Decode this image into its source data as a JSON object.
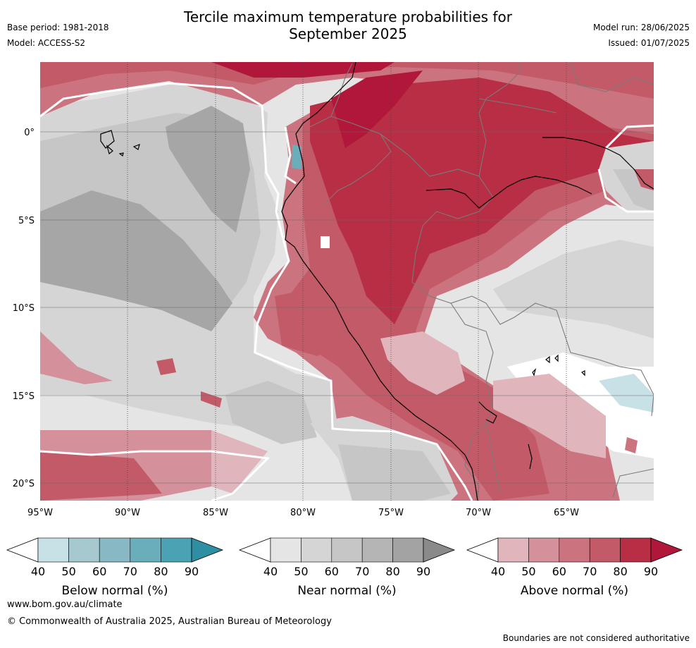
{
  "title_line1": "Tercile maximum temperature probabilities for",
  "title_line2": "September 2025",
  "meta_left": [
    "Base period: 1981-2018",
    "Model: ACCESS-S2"
  ],
  "meta_right": [
    "Model run: 28/06/2025",
    "Issued: 01/07/2025"
  ],
  "map": {
    "lat_labels": [
      "0°",
      "5°S",
      "10°S",
      "15°S",
      "20°S"
    ],
    "lon_labels": [
      "95°W",
      "90°W",
      "85°W",
      "80°W",
      "75°W",
      "70°W",
      "65°W"
    ]
  },
  "colorbars": [
    {
      "label": "Below normal (%)",
      "ticks": [
        "40",
        "50",
        "60",
        "70",
        "80",
        "90"
      ],
      "colors": [
        "#ffffff",
        "#c8e1e6",
        "#a6c9cf",
        "#88b8c3",
        "#6aaebb",
        "#4aa2b2",
        "#2e8fa3"
      ]
    },
    {
      "label": "Near normal (%)",
      "ticks": [
        "40",
        "50",
        "60",
        "70",
        "80",
        "90"
      ],
      "colors": [
        "#ffffff",
        "#e5e5e5",
        "#d5d5d5",
        "#c6c6c6",
        "#b5b5b5",
        "#a3a3a3",
        "#8a8a8a"
      ]
    },
    {
      "label": "Above normal (%)",
      "ticks": [
        "40",
        "50",
        "60",
        "70",
        "80",
        "90"
      ],
      "colors": [
        "#ffffff",
        "#e1b5bc",
        "#d5919b",
        "#cb737f",
        "#c25a68",
        "#b82e44",
        "#b0173a"
      ]
    }
  ],
  "footer": {
    "url": "www.bom.gov.au/climate",
    "copyright": "© Commonwealth of Australia 2025, Australian Bureau of Meteorology",
    "note": "Boundaries are not considered authoritative"
  }
}
